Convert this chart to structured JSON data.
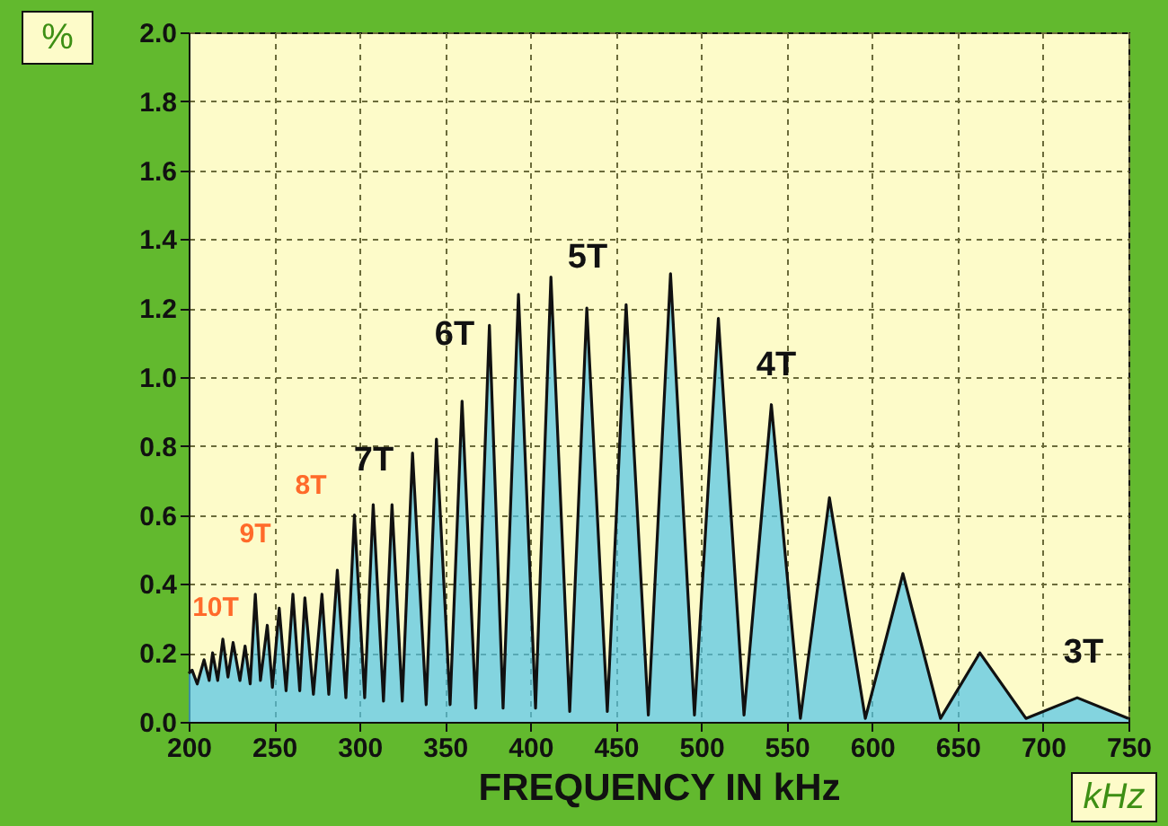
{
  "chart_data": {
    "type": "area",
    "xlabel": "FREQUENCY IN kHz",
    "ylabel": "%",
    "annotations": [
      "10T",
      "9T",
      "8T",
      "7T",
      "6T",
      "5T",
      "4T",
      "3T",
      "kHz"
    ],
    "x": [
      200,
      202,
      205,
      209,
      212,
      214,
      217,
      220,
      223,
      226,
      230,
      233,
      236,
      239,
      242,
      246,
      249,
      253,
      257,
      261,
      265,
      268,
      273,
      278,
      282,
      287,
      292,
      297,
      303,
      308,
      314,
      319,
      325,
      331,
      339,
      345,
      353,
      360,
      368,
      376,
      384,
      393,
      403,
      412,
      423,
      433,
      445,
      456,
      469,
      482,
      496,
      510,
      525,
      541,
      558,
      575,
      596,
      618,
      640,
      663,
      690,
      720,
      750
    ],
    "series": [
      {
        "color": "#4fc3e8",
        "values": [
          0.14,
          0.15,
          0.11,
          0.18,
          0.12,
          0.2,
          0.12,
          0.24,
          0.13,
          0.23,
          0.12,
          0.22,
          0.11,
          0.37,
          0.12,
          0.28,
          0.1,
          0.33,
          0.09,
          0.37,
          0.09,
          0.36,
          0.08,
          0.37,
          0.08,
          0.44,
          0.07,
          0.6,
          0.07,
          0.63,
          0.06,
          0.63,
          0.06,
          0.78,
          0.05,
          0.82,
          0.05,
          0.93,
          0.04,
          1.15,
          0.04,
          1.24,
          0.04,
          1.29,
          0.03,
          1.2,
          0.03,
          1.21,
          0.02,
          1.3,
          0.02,
          1.17,
          0.02,
          0.92,
          0.01,
          0.65,
          0.01,
          0.43,
          0.01,
          0.2,
          0.01,
          0.07,
          0.01
        ]
      }
    ],
    "xlim": [
      200,
      750
    ],
    "xticks": [
      200,
      250,
      300,
      350,
      400,
      450,
      500,
      550,
      600,
      650,
      700,
      750
    ],
    "ylim": [
      0,
      2
    ],
    "yticks": [
      {
        "value": 0,
        "label": "0.0"
      },
      {
        "value": 0.2,
        "label": "0.2"
      },
      {
        "value": 0.4,
        "label": "0.4"
      },
      {
        "value": 0.6,
        "label": "0.6"
      },
      {
        "value": 0.8,
        "label": "0.8"
      },
      {
        "value": 1,
        "label": "1.0"
      },
      {
        "value": 1.2,
        "label": "1.2"
      },
      {
        "value": 1.4,
        "label": "1.4"
      },
      {
        "value": 1.6,
        "label": "1.6"
      },
      {
        "value": 1.8,
        "label": "1.8"
      },
      {
        "value": 2,
        "label": "2.0"
      }
    ],
    "grid": true,
    "line_style": "solid",
    "marker": "none"
  }
}
